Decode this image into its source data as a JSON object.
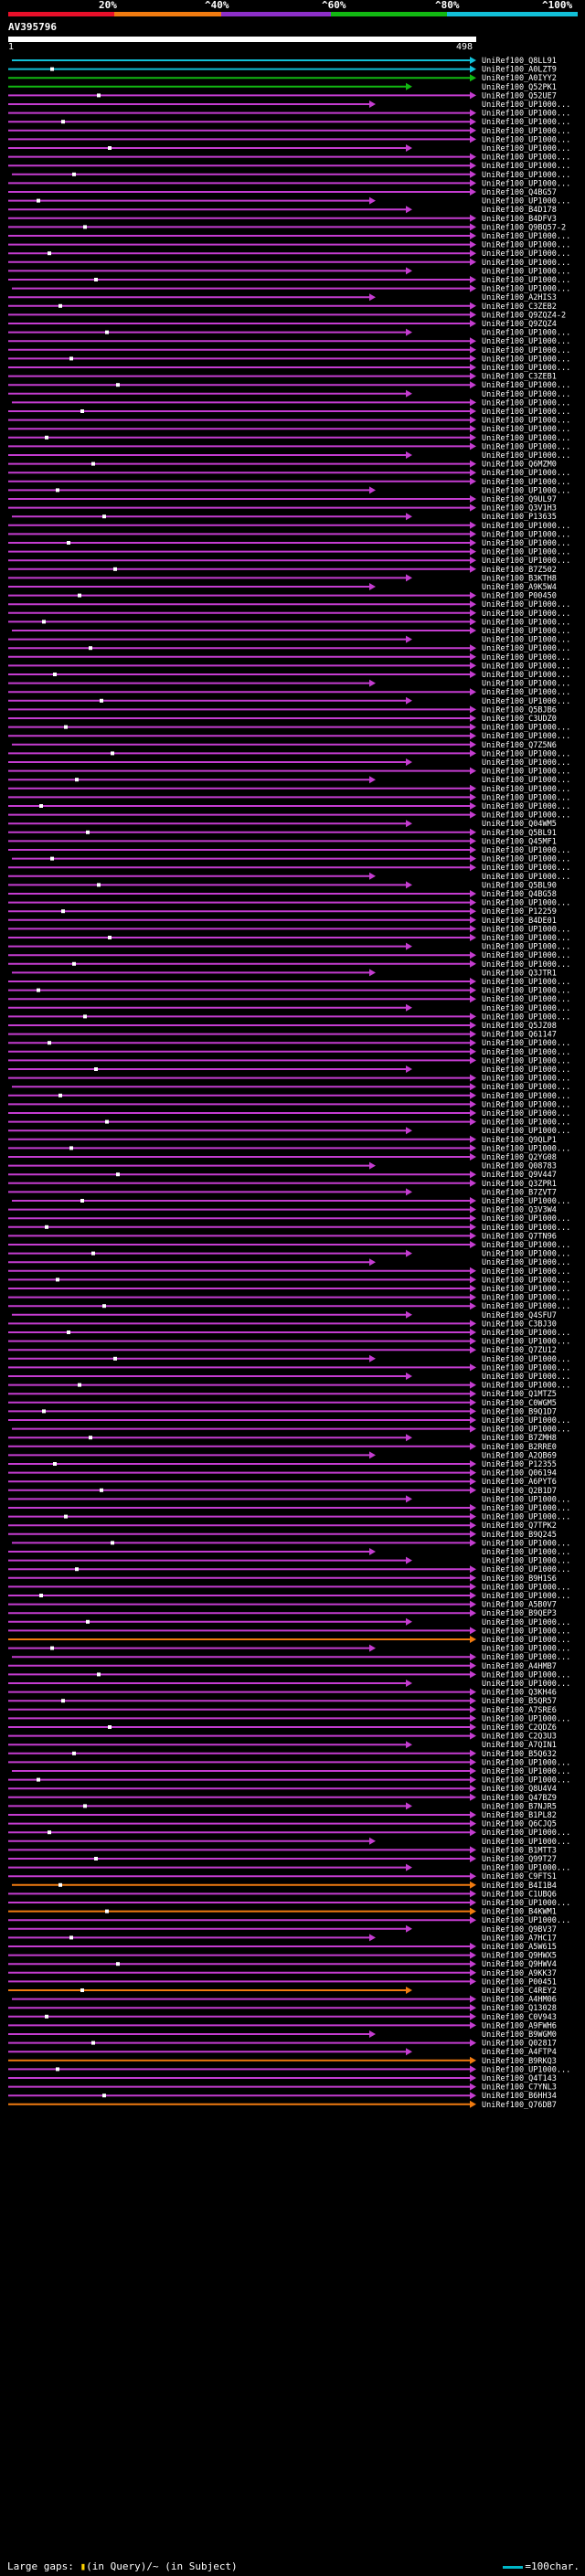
{
  "chart_data": {
    "type": "alignment-map",
    "query": {
      "name": "AV395796",
      "start": 1,
      "end": 498
    },
    "scale": [
      {
        "label": "20%",
        "color": "#e8102a"
      },
      {
        "label": "^40%",
        "color": "#f07b10"
      },
      {
        "label": "^60%",
        "color": "#8c2fc8"
      },
      {
        "label": "^80%",
        "color": "#12b812"
      },
      {
        "label": "^100%",
        "color": "#12c0d8"
      }
    ],
    "start_label": "1",
    "end_label": "498",
    "hits": [
      "UniRef100_Q8LL91",
      "UniRef100_A0LZT9",
      "UniRef100_A0IYY2",
      "UniRef100_Q52PK1",
      "UniRef100_Q52UE7",
      "UniRef100_UP1000...",
      "UniRef100_UP1000...",
      "UniRef100_UP1000...",
      "UniRef100_UP1000...",
      "UniRef100_UP1000...",
      "UniRef100_UP1000...",
      "UniRef100_UP1000...",
      "UniRef100_UP1000...",
      "UniRef100_UP1000...",
      "UniRef100_UP1000...",
      "UniRef100_Q4BG57",
      "UniRef100_UP1000...",
      "UniRef100_B4D178",
      "UniRef100_B4DFV3",
      "UniRef100_Q9BQ57-2",
      "UniRef100_UP1000...",
      "UniRef100_UP1000...",
      "UniRef100_UP1000...",
      "UniRef100_UP1000...",
      "UniRef100_UP1000...",
      "UniRef100_UP1000...",
      "UniRef100_UP1000...",
      "UniRef100_A2HIS3",
      "UniRef100_C3ZEB2",
      "UniRef100_Q9ZQZ4-2",
      "UniRef100_Q9ZQZ4",
      "UniRef100_UP1000...",
      "UniRef100_UP1000...",
      "UniRef100_UP1000...",
      "UniRef100_UP1000...",
      "UniRef100_UP1000...",
      "UniRef100_C3ZEB1",
      "UniRef100_UP1000...",
      "UniRef100_UP1000...",
      "UniRef100_UP1000...",
      "UniRef100_UP1000...",
      "UniRef100_UP1000...",
      "UniRef100_UP1000...",
      "UniRef100_UP1000...",
      "UniRef100_UP1000...",
      "UniRef100_UP1000...",
      "UniRef100_Q6MZM0",
      "UniRef100_UP1000...",
      "UniRef100_UP1000...",
      "UniRef100_UP1000...",
      "UniRef100_Q9UL97",
      "UniRef100_Q3V1H3",
      "UniRef100_P13635",
      "UniRef100_UP1000...",
      "UniRef100_UP1000...",
      "UniRef100_UP1000...",
      "UniRef100_UP1000...",
      "UniRef100_UP1000...",
      "UniRef100_B7Z502",
      "UniRef100_B3KTH8",
      "UniRef100_A9K5W4",
      "UniRef100_P00450",
      "UniRef100_UP1000...",
      "UniRef100_UP1000...",
      "UniRef100_UP1000...",
      "UniRef100_UP1000...",
      "UniRef100_UP1000...",
      "UniRef100_UP1000...",
      "UniRef100_UP1000...",
      "UniRef100_UP1000...",
      "UniRef100_UP1000...",
      "UniRef100_UP1000...",
      "UniRef100_UP1000...",
      "UniRef100_UP1000...",
      "UniRef100_Q5BJB6",
      "UniRef100_C3UDZ0",
      "UniRef100_UP1000...",
      "UniRef100_UP1000...",
      "UniRef100_Q7Z5N6",
      "UniRef100_UP1000...",
      "UniRef100_UP1000...",
      "UniRef100_UP1000...",
      "UniRef100_UP1000...",
      "UniRef100_UP1000...",
      "UniRef100_UP1000...",
      "UniRef100_UP1000...",
      "UniRef100_UP1000...",
      "UniRef100_Q04WM5",
      "UniRef100_Q5BL91",
      "UniRef100_Q45MF1",
      "UniRef100_UP1000...",
      "UniRef100_UP1000...",
      "UniRef100_UP1000...",
      "UniRef100_UP1000...",
      "UniRef100_Q5BL90",
      "UniRef100_Q4BG58",
      "UniRef100_UP1000...",
      "UniRef100_P12259",
      "UniRef100_B4DE01",
      "UniRef100_UP1000...",
      "UniRef100_UP1000...",
      "UniRef100_UP1000...",
      "UniRef100_UP1000...",
      "UniRef100_UP1000...",
      "UniRef100_Q3JTR1",
      "UniRef100_UP1000...",
      "UniRef100_UP1000...",
      "UniRef100_UP1000...",
      "UniRef100_UP1000...",
      "UniRef100_UP1000...",
      "UniRef100_Q5JZ08",
      "UniRef100_Q61147",
      "UniRef100_UP1000...",
      "UniRef100_UP1000...",
      "UniRef100_UP1000...",
      "UniRef100_UP1000...",
      "UniRef100_UP1000...",
      "UniRef100_UP1000...",
      "UniRef100_UP1000...",
      "UniRef100_UP1000...",
      "UniRef100_UP1000...",
      "UniRef100_UP1000...",
      "UniRef100_UP1000...",
      "UniRef100_Q9QLP1",
      "UniRef100_UP1000...",
      "UniRef100_Q2YG08",
      "UniRef100_Q08783",
      "UniRef100_Q9V447",
      "UniRef100_Q3ZPR1",
      "UniRef100_B7ZVT7",
      "UniRef100_UP1000...",
      "UniRef100_Q3V3W4",
      "UniRef100_UP1000...",
      "UniRef100_UP1000...",
      "UniRef100_Q7TN96",
      "UniRef100_UP1000...",
      "UniRef100_UP1000...",
      "UniRef100_UP1000...",
      "UniRef100_UP1000...",
      "UniRef100_UP1000...",
      "UniRef100_UP1000...",
      "UniRef100_UP1000...",
      "UniRef100_UP1000...",
      "UniRef100_Q4SFU7",
      "UniRef100_C3BJ30",
      "UniRef100_UP1000...",
      "UniRef100_UP1000...",
      "UniRef100_Q7ZU12",
      "UniRef100_UP1000...",
      "UniRef100_UP1000...",
      "UniRef100_UP1000...",
      "UniRef100_UP1000...",
      "UniRef100_Q1MTZ5",
      "UniRef100_C0WGM5",
      "UniRef100_B9Q1D7",
      "UniRef100_UP1000...",
      "UniRef100_UP1000...",
      "UniRef100_B7ZMH8",
      "UniRef100_B2RRE0",
      "UniRef100_A2QB69",
      "UniRef100_P12355",
      "UniRef100_Q06194",
      "UniRef100_A6PYT6",
      "UniRef100_Q2B1D7",
      "UniRef100_UP1000...",
      "UniRef100_UP1000...",
      "UniRef100_UP1000...",
      "UniRef100_Q7TPK2",
      "UniRef100_B9Q245",
      "UniRef100_UP1000...",
      "UniRef100_UP1000...",
      "UniRef100_UP1000...",
      "UniRef100_UP1000...",
      "UniRef100_B9H1S6",
      "UniRef100_UP1000...",
      "UniRef100_UP1000...",
      "UniRef100_A5B0V7",
      "UniRef100_B9QEP3",
      "UniRef100_UP1000...",
      "UniRef100_UP1000...",
      "UniRef100_UP1000...",
      "UniRef100_UP1000...",
      "UniRef100_UP1000...",
      "UniRef100_A4HMB7",
      "UniRef100_UP1000...",
      "UniRef100_UP1000...",
      "UniRef100_Q3KH46",
      "UniRef100_B5QR57",
      "UniRef100_A7SRE6",
      "UniRef100_UP1000...",
      "UniRef100_C2QDZ6",
      "UniRef100_C2Q3U3",
      "UniRef100_A7QIN1",
      "UniRef100_B5Q632",
      "UniRef100_UP1000...",
      "UniRef100_UP1000...",
      "UniRef100_UP1000...",
      "UniRef100_Q8U4V4",
      "UniRef100_Q47BZ9",
      "UniRef100_B7NJR5",
      "UniRef100_B1PL82",
      "UniRef100_Q6CJQ5",
      "UniRef100_UP1000...",
      "UniRef100_UP1000...",
      "UniRef100_B1MTT3",
      "UniRef100_Q99T27",
      "UniRef100_UP1000...",
      "UniRef100_C9FTS1",
      "UniRef100_B4I1B4",
      "UniRef100_C1UBQ6",
      "UniRef100_UP1000...",
      "UniRef100_B4KWM1",
      "UniRef100_UP1000...",
      "UniRef100_Q9BV37",
      "UniRef100_A7HC17",
      "UniRef100_A5W615",
      "UniRef100_Q9HWX5",
      "UniRef100_Q9HWV4",
      "UniRef100_A9KK37",
      "UniRef100_P00451",
      "UniRef100_C4REY2",
      "UniRef100_A4HM06",
      "UniRef100_Q13028",
      "UniRef100_C0V943",
      "UniRef100_A9FWH6",
      "UniRef100_B9WGM0",
      "UniRef100_Q02817",
      "UniRef100_A4FTP4",
      "UniRef100_B9RKQ3",
      "UniRef100_UP1000...",
      "UniRef100_Q4T143",
      "UniRef100_C7YNL3",
      "UniRef100_B6HH34",
      "UniRef100_Q76DB7"
    ]
  },
  "legend": {
    "gaps_label": "Large gaps: ",
    "gaps_in_query": "(in Query)",
    "gaps_in_subject": "/~ (in Subject)",
    "scale_label": "=100char."
  }
}
